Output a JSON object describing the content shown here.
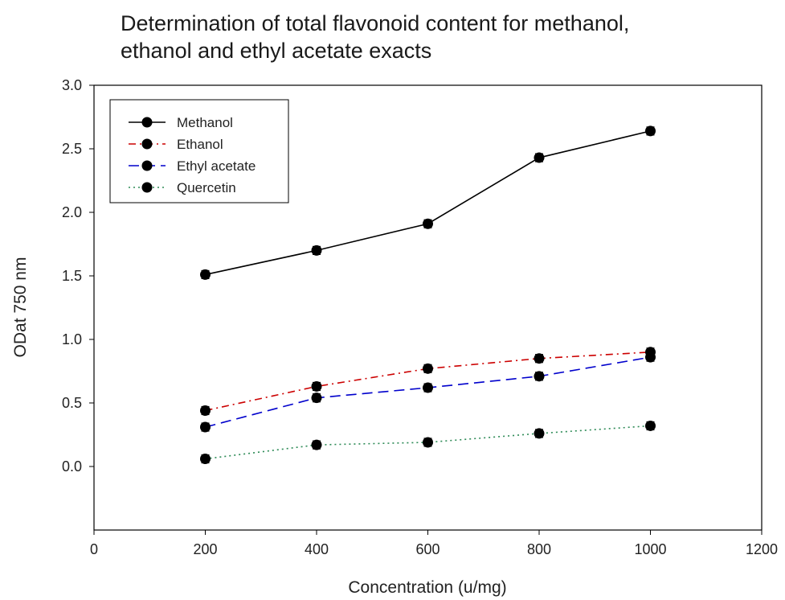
{
  "chart_data": {
    "type": "line",
    "title_lines": [
      "Determination of total flavonoid content for methanol,",
      "ethanol and ethyl acetate exacts"
    ],
    "xlabel": "Concentration (u/mg)",
    "ylabel": "ODat 750 nm",
    "xlim": [
      0,
      1200
    ],
    "ylim": [
      -0.5,
      3.0
    ],
    "x_ticks": [
      0,
      200,
      400,
      600,
      800,
      1000,
      1200
    ],
    "y_ticks": [
      0.0,
      0.5,
      1.0,
      1.5,
      2.0,
      2.5,
      3.0
    ],
    "x_tick_labels": [
      "0",
      "200",
      "400",
      "600",
      "800",
      "1000",
      "1200"
    ],
    "y_tick_labels": [
      "0.0",
      "0.5",
      "1.0",
      "1.5",
      "2.0",
      "2.5",
      "3.0"
    ],
    "grid": false,
    "legend_position": "top-left",
    "x": [
      200,
      400,
      600,
      800,
      1000
    ],
    "series": [
      {
        "name": "Methanol",
        "values": [
          1.51,
          1.7,
          1.91,
          2.43,
          2.64
        ],
        "color": "#000000",
        "dash": "solid"
      },
      {
        "name": "Ethanol",
        "values": [
          0.44,
          0.63,
          0.77,
          0.85,
          0.9
        ],
        "color": "#cc0000",
        "dash": "dash-dot"
      },
      {
        "name": "Ethyl acetate",
        "values": [
          0.31,
          0.54,
          0.62,
          0.71,
          0.86
        ],
        "color": "#0000cc",
        "dash": "dash"
      },
      {
        "name": "Quercetin",
        "values": [
          0.06,
          0.17,
          0.19,
          0.26,
          0.32
        ],
        "color": "#2e8b57",
        "dash": "dot"
      }
    ]
  }
}
